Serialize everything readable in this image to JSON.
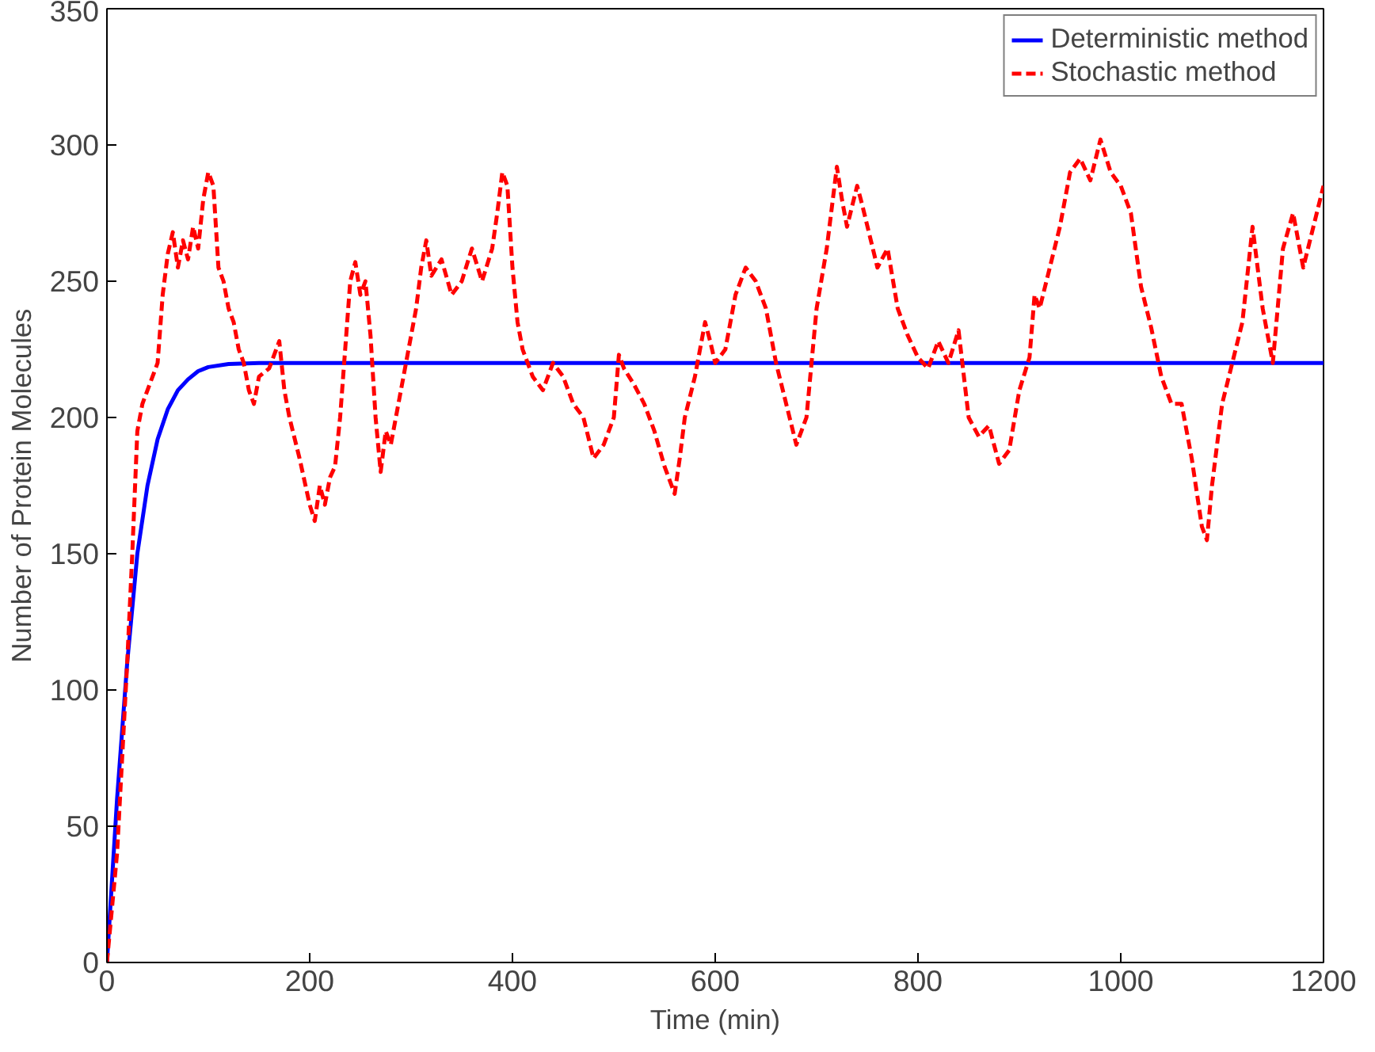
{
  "chart_data": {
    "type": "line",
    "xlabel": "Time (min)",
    "ylabel": "Number of Protein Molecules",
    "xlim": [
      0,
      1200
    ],
    "ylim": [
      0,
      350
    ],
    "xticks": [
      0,
      200,
      400,
      600,
      800,
      1000,
      1200
    ],
    "yticks": [
      0,
      50,
      100,
      150,
      200,
      250,
      300,
      350
    ],
    "grid": false,
    "legend": "top right",
    "series": [
      {
        "name": "Deterministic method",
        "color": "#0000ff",
        "line_style": "solid",
        "x": [
          0,
          10,
          20,
          30,
          40,
          50,
          60,
          70,
          80,
          90,
          100,
          120,
          150,
          1200
        ],
        "values": [
          0,
          60,
          110,
          150,
          175,
          192,
          203,
          210,
          214,
          217,
          218.5,
          219.6,
          220,
          220
        ]
      },
      {
        "name": "Stochastic method",
        "color": "#ff0000",
        "line_style": "dashed",
        "x": [
          0,
          10,
          20,
          25,
          30,
          35,
          40,
          45,
          50,
          55,
          60,
          65,
          70,
          75,
          80,
          85,
          90,
          95,
          100,
          105,
          110,
          115,
          120,
          125,
          130,
          135,
          140,
          145,
          150,
          160,
          170,
          175,
          180,
          190,
          200,
          205,
          210,
          215,
          220,
          225,
          230,
          235,
          240,
          245,
          250,
          255,
          260,
          265,
          270,
          275,
          280,
          290,
          300,
          305,
          310,
          315,
          320,
          330,
          340,
          350,
          360,
          370,
          380,
          385,
          390,
          395,
          400,
          405,
          410,
          415,
          420,
          430,
          440,
          450,
          460,
          470,
          480,
          490,
          500,
          505,
          510,
          520,
          530,
          540,
          550,
          560,
          565,
          570,
          580,
          590,
          595,
          600,
          610,
          620,
          630,
          640,
          650,
          660,
          670,
          680,
          690,
          700,
          710,
          720,
          725,
          730,
          740,
          745,
          760,
          770,
          780,
          790,
          800,
          810,
          820,
          830,
          840,
          850,
          860,
          870,
          880,
          890,
          900,
          910,
          915,
          920,
          930,
          940,
          950,
          960,
          970,
          980,
          990,
          1000,
          1010,
          1020,
          1030,
          1040,
          1050,
          1060,
          1070,
          1080,
          1085,
          1090,
          1100,
          1110,
          1120,
          1130,
          1140,
          1150,
          1160,
          1170,
          1180,
          1190,
          1200
        ],
        "values": [
          0,
          40,
          110,
          150,
          195,
          205,
          210,
          215,
          220,
          245,
          260,
          268,
          255,
          265,
          258,
          270,
          262,
          280,
          290,
          285,
          255,
          250,
          240,
          235,
          225,
          220,
          210,
          205,
          215,
          218,
          228,
          210,
          200,
          185,
          168,
          162,
          175,
          168,
          178,
          182,
          200,
          225,
          250,
          257,
          245,
          250,
          230,
          200,
          180,
          195,
          190,
          210,
          230,
          240,
          255,
          265,
          252,
          258,
          245,
          250,
          262,
          250,
          262,
          275,
          290,
          285,
          255,
          235,
          225,
          220,
          215,
          210,
          220,
          215,
          205,
          200,
          185,
          190,
          200,
          223,
          218,
          212,
          205,
          195,
          182,
          172,
          185,
          200,
          215,
          235,
          228,
          220,
          225,
          245,
          255,
          250,
          240,
          220,
          205,
          190,
          200,
          240,
          262,
          292,
          280,
          270,
          285,
          278,
          255,
          262,
          240,
          230,
          222,
          218,
          228,
          220,
          232,
          200,
          193,
          197,
          183,
          188,
          210,
          222,
          245,
          240,
          255,
          270,
          290,
          295,
          287,
          302,
          290,
          285,
          275,
          248,
          233,
          215,
          205,
          205,
          185,
          160,
          155,
          175,
          205,
          220,
          235,
          270,
          240,
          220,
          262,
          275,
          255,
          270,
          285
        ]
      }
    ]
  }
}
